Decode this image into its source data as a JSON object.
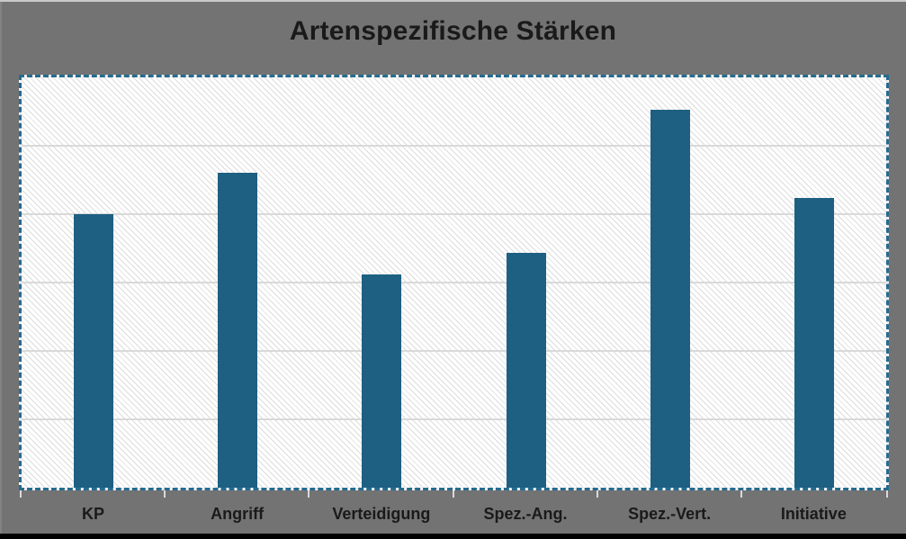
{
  "window": {
    "background_color": "#737373",
    "top_edge_color": "#c9c9c9",
    "left_edge_color": "#828282",
    "bottom_edge_color": "#000000"
  },
  "chart": {
    "title": "Artenspezifische Stärken",
    "text_color": "#1a1a1a",
    "bar_color": "#1e6082",
    "selection_border_color": "#266b8e",
    "gridline_color": "#d9d9d9",
    "hatch_color": "#dcdcdc",
    "plot_fill_color": "#ffffff"
  },
  "chart_data": {
    "type": "bar",
    "title": "Artenspezifische Stärken",
    "categories": [
      "KP",
      "Angriff",
      "Verteidigung",
      "Spez.-Ang.",
      "Spez.-Vert.",
      "Initiative"
    ],
    "values": [
      100,
      115,
      78,
      86,
      138,
      106
    ],
    "xlabel": "",
    "ylabel": "",
    "ylim": [
      0,
      150
    ],
    "gridline_step": 25,
    "grid": true,
    "legend": false,
    "y_axis_tick_labels_visible": false,
    "plot_area_fill": "light diagonal hatch pattern",
    "plot_area_border": "dashed (selected state)"
  }
}
